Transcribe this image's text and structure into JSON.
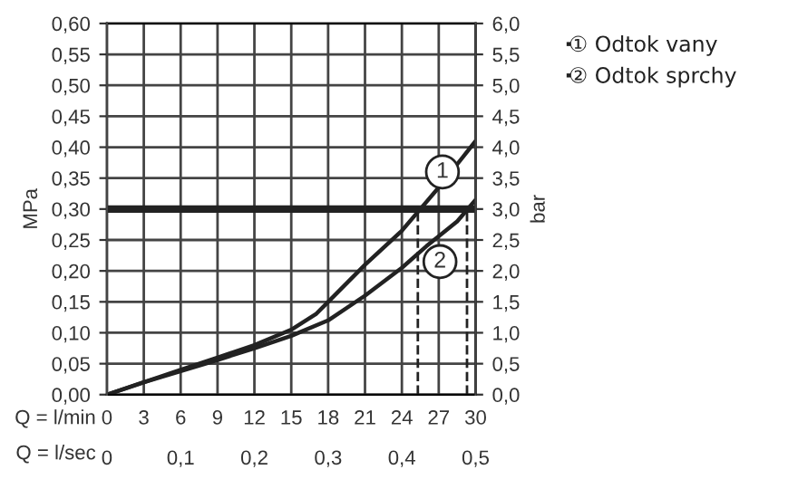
{
  "chart_data": {
    "type": "line",
    "xlabel": "Q = l/min",
    "x2label": "Q = l/sec",
    "ylabel": "MPa",
    "y2label": "bar",
    "series": [
      {
        "name": "① Odtok vany",
        "color": "#222222",
        "x": [
          0,
          3,
          6,
          9,
          12,
          15,
          17,
          18,
          21,
          24,
          25.5,
          27,
          30
        ],
        "values": [
          0,
          0.02,
          0.04,
          0.06,
          0.08,
          0.105,
          0.13,
          0.15,
          0.21,
          0.265,
          0.3,
          0.335,
          0.41
        ]
      },
      {
        "name": "② Odtok sprchy",
        "color": "#222222",
        "x": [
          0,
          3,
          6,
          9,
          12,
          15,
          18,
          21,
          24,
          26,
          28.5,
          30
        ],
        "values": [
          0,
          0.02,
          0.038,
          0.056,
          0.075,
          0.095,
          0.12,
          0.16,
          0.205,
          0.24,
          0.28,
          0.315
        ]
      }
    ],
    "annotations": [
      {
        "text": "1",
        "x": 27.3,
        "y": 0.36
      },
      {
        "text": "2",
        "x": 27.1,
        "y": 0.215
      }
    ],
    "ref_lines": [
      {
        "axis": "y",
        "value": 0.3,
        "color": "#222222",
        "line_style": "solid"
      },
      {
        "axis": "x",
        "value": 25.3,
        "color": "#222222",
        "line_style": "dashed"
      },
      {
        "axis": "x",
        "value": 29.3,
        "color": "#222222",
        "line_style": "dashed"
      }
    ],
    "xlim": [
      0,
      30
    ],
    "xticks": [
      0,
      3,
      6,
      9,
      12,
      15,
      18,
      21,
      24,
      27,
      30
    ],
    "x2lim": [
      0,
      0.5
    ],
    "x2ticks": [
      0,
      {
        "value": 0.1,
        "label": "0,1"
      },
      {
        "value": 0.2,
        "label": "0,2"
      },
      {
        "value": 0.3,
        "label": "0,3"
      },
      {
        "value": 0.4,
        "label": "0,4"
      },
      {
        "value": 0.5,
        "label": "0,5"
      }
    ],
    "ylim": [
      0,
      0.6
    ],
    "yticks": [
      {
        "value": 0,
        "label": "0,00"
      },
      {
        "value": 0.05,
        "label": "0,05"
      },
      {
        "value": 0.1,
        "label": "0,10"
      },
      {
        "value": 0.15,
        "label": "0,15"
      },
      {
        "value": 0.2,
        "label": "0,20"
      },
      {
        "value": 0.25,
        "label": "0,25"
      },
      {
        "value": 0.3,
        "label": "0,30"
      },
      {
        "value": 0.35,
        "label": "0,35"
      },
      {
        "value": 0.4,
        "label": "0,40"
      },
      {
        "value": 0.45,
        "label": "0,45"
      },
      {
        "value": 0.5,
        "label": "0,50"
      },
      {
        "value": 0.55,
        "label": "0,55"
      },
      {
        "value": 0.6,
        "label": "0,60"
      }
    ],
    "y2lim": [
      0,
      6
    ],
    "y2ticks": [
      {
        "value": 0,
        "label": "0,0"
      },
      {
        "value": 0.5,
        "label": "0,5"
      },
      {
        "value": 1,
        "label": "1,0"
      },
      {
        "value": 1.5,
        "label": "1,5"
      },
      {
        "value": 2,
        "label": "2,0"
      },
      {
        "value": 2.5,
        "label": "2,5"
      },
      {
        "value": 3,
        "label": "3,0"
      },
      {
        "value": 3.5,
        "label": "3,5"
      },
      {
        "value": 4,
        "label": "4,0"
      },
      {
        "value": 4.5,
        "label": "4,5"
      },
      {
        "value": 5,
        "label": "5,0"
      },
      {
        "value": 5.5,
        "label": "5,5"
      },
      {
        "value": 6,
        "label": "6,0"
      }
    ],
    "grid": true,
    "legend": "top right",
    "marker": "none",
    "line_style": "solid"
  }
}
